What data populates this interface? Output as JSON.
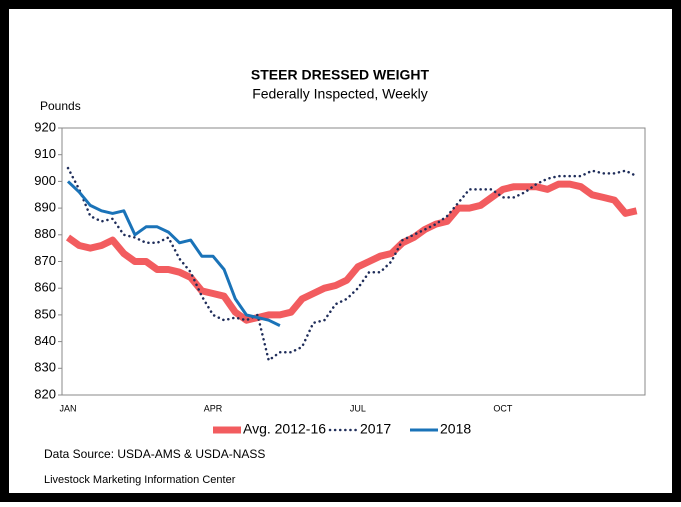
{
  "chart_data": {
    "type": "line",
    "title": "STEER DRESSED WEIGHT",
    "subtitle": "Federally Inspected, Weekly",
    "ylabel": "Pounds",
    "source": "Data Source:  USDA-AMS & USDA-NASS",
    "footer": "Livestock Marketing Information Center",
    "categories": [
      "JAN",
      null,
      null,
      null,
      null,
      null,
      null,
      null,
      null,
      null,
      null,
      null,
      null,
      "APR",
      null,
      null,
      null,
      null,
      null,
      null,
      null,
      null,
      null,
      null,
      null,
      null,
      "JUL",
      null,
      null,
      null,
      null,
      null,
      null,
      null,
      null,
      null,
      null,
      null,
      null,
      "OCT",
      null,
      null,
      null,
      null,
      null,
      null,
      null,
      null,
      null,
      null,
      null,
      null
    ],
    "series": [
      {
        "name": "Avg. 2012-16",
        "color": "#f25c5f",
        "style": "solid",
        "values": [
          879,
          876,
          875,
          876,
          878,
          873,
          870,
          870,
          867,
          867,
          866,
          864,
          859,
          858,
          857,
          851,
          848,
          849,
          850,
          850,
          851,
          856,
          858,
          860,
          861,
          863,
          868,
          870,
          872,
          873,
          877,
          879,
          882,
          884,
          885,
          890,
          890,
          891,
          894,
          897,
          898,
          898,
          898,
          897,
          899,
          899,
          898,
          895,
          894,
          893,
          888,
          889
        ]
      },
      {
        "name": "2017",
        "color": "#1f2d5a",
        "style": "dotted",
        "values": [
          905,
          897,
          887,
          885,
          886,
          880,
          879,
          877,
          877,
          879,
          871,
          866,
          857,
          850,
          848,
          849,
          848,
          850,
          833,
          836,
          836,
          838,
          847,
          848,
          854,
          856,
          860,
          866,
          866,
          870,
          878,
          880,
          882,
          884,
          887,
          892,
          897,
          897,
          897,
          894,
          894,
          896,
          899,
          901,
          902,
          902,
          902,
          904,
          903,
          903,
          904,
          902
        ]
      },
      {
        "name": "2018",
        "color": "#1a73b8",
        "style": "solid",
        "values": [
          900,
          896,
          891,
          889,
          888,
          889,
          880,
          883,
          883,
          881,
          877,
          878,
          872,
          872,
          867,
          856,
          850,
          849,
          848,
          846,
          null,
          null,
          null,
          null,
          null,
          null,
          null,
          null,
          null,
          null,
          null,
          null,
          null,
          null,
          null,
          null,
          null,
          null,
          null,
          null,
          null,
          null,
          null,
          null,
          null,
          null,
          null,
          null,
          null,
          null,
          null,
          null
        ]
      }
    ],
    "ylim": [
      820,
      920
    ],
    "yticks": [
      820,
      830,
      840,
      850,
      860,
      870,
      880,
      890,
      900,
      910,
      920
    ],
    "grid": false,
    "legend": "bottom"
  }
}
